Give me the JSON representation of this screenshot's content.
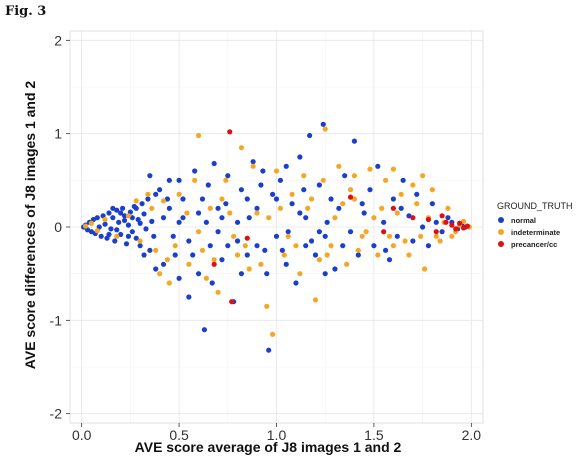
{
  "figure": {
    "label": "Fig. 3"
  },
  "chart_data": {
    "type": "scatter",
    "xlabel": "AVE score average of J8 images 1 and 2",
    "ylabel": "AVE score differences of J8 images 1 and 2",
    "xlim": [
      -0.06,
      2.06
    ],
    "ylim": [
      -2.1,
      2.1
    ],
    "x_ticks": [
      "0.0",
      "0.5",
      "1.0",
      "1.5",
      "2.0"
    ],
    "y_ticks": [
      "2",
      "1",
      "0",
      "-1",
      "-2"
    ],
    "grid": true,
    "legend_position": "right",
    "legend_title": "GROUND_TRUTH",
    "series": [
      {
        "name": "normal",
        "color": "#1a3fcc",
        "points": [
          [
            0.01,
            0
          ],
          [
            0.02,
            0.02
          ],
          [
            0.03,
            -0.03
          ],
          [
            0.04,
            0.05
          ],
          [
            0.05,
            -0.05
          ],
          [
            0.06,
            0.08
          ],
          [
            0.07,
            -0.07
          ],
          [
            0.08,
            0.1
          ],
          [
            0.09,
            0
          ],
          [
            0.1,
            -0.1
          ],
          [
            0.11,
            0.12
          ],
          [
            0.12,
            0.03
          ],
          [
            0.13,
            -0.12
          ],
          [
            0.14,
            0.15
          ],
          [
            0.15,
            -0.02
          ],
          [
            0.16,
            0.1
          ],
          [
            0.17,
            -0.15
          ],
          [
            0.18,
            0.18
          ],
          [
            0.19,
            0.05
          ],
          [
            0.2,
            -0.08
          ],
          [
            0.21,
            0.2
          ],
          [
            0.22,
            0.12
          ],
          [
            0.23,
            -0.18
          ],
          [
            0.24,
            0.02
          ],
          [
            0.25,
            0.16
          ],
          [
            0.26,
            -0.05
          ],
          [
            0.27,
            0.22
          ],
          [
            0.28,
            -0.12
          ],
          [
            0.29,
            0.08
          ],
          [
            0.3,
            -0.2
          ],
          [
            0.31,
            0.25
          ],
          [
            0.32,
            0.14
          ],
          [
            0.33,
            -0.02
          ],
          [
            0.34,
            0.3
          ],
          [
            0.35,
            -0.25
          ],
          [
            0.36,
            0.06
          ],
          [
            0.37,
            -0.1
          ],
          [
            0.38,
            0.35
          ],
          [
            0.22,
            0.07
          ],
          [
            0.24,
            -0.1
          ],
          [
            0.2,
            0.15
          ],
          [
            0.18,
            -0.03
          ],
          [
            0.16,
            0.2
          ],
          [
            0.14,
            -0.08
          ],
          [
            0.26,
            0.1
          ],
          [
            0.28,
            0.2
          ],
          [
            0.3,
            0.04
          ],
          [
            0.32,
            -0.3
          ],
          [
            0.4,
            0.4
          ],
          [
            0.42,
            -0.4
          ],
          [
            0.45,
            0.2
          ],
          [
            0.48,
            -0.3
          ],
          [
            0.5,
            0.5
          ],
          [
            0.5,
            -0.55
          ],
          [
            0.52,
            0.1
          ],
          [
            0.55,
            -0.15
          ],
          [
            0.58,
            0.6
          ],
          [
            0.6,
            -0.5
          ],
          [
            0.62,
            0.3
          ],
          [
            0.63,
            -1.1
          ],
          [
            0.65,
            0.45
          ],
          [
            0.67,
            -0.6
          ],
          [
            0.7,
            0.2
          ],
          [
            0.72,
            -0.35
          ],
          [
            0.75,
            0.55
          ],
          [
            0.78,
            -0.8
          ],
          [
            0.8,
            0.05
          ],
          [
            0.82,
            0.4
          ],
          [
            0.85,
            -0.3
          ],
          [
            0.88,
            0.7
          ],
          [
            0.9,
            -0.2
          ],
          [
            0.93,
            0.6
          ],
          [
            0.95,
            -0.5
          ],
          [
            0.96,
            -1.32
          ],
          [
            0.98,
            0.35
          ],
          [
            1.0,
            -0.1
          ],
          [
            1.02,
            0.5
          ],
          [
            1.05,
            -0.4
          ],
          [
            1.08,
            0.25
          ],
          [
            1.1,
            -0.6
          ],
          [
            1.12,
            0.75
          ],
          [
            1.15,
            0.1
          ],
          [
            1.17,
            0.98
          ],
          [
            1.2,
            -0.3
          ],
          [
            1.22,
            0.45
          ],
          [
            1.24,
            1.1
          ],
          [
            1.25,
            -0.1
          ],
          [
            1.28,
            0.3
          ],
          [
            1.3,
            -0.45
          ],
          [
            1.32,
            0.2
          ],
          [
            1.35,
            0.55
          ],
          [
            1.38,
            -0.05
          ],
          [
            1.4,
            0.92
          ],
          [
            1.42,
            -0.3
          ],
          [
            1.45,
            0.15
          ],
          [
            1.48,
            0.4
          ],
          [
            1.5,
            -0.2
          ],
          [
            1.52,
            0.65
          ],
          [
            1.55,
            0.05
          ],
          [
            1.58,
            -0.35
          ],
          [
            1.6,
            0.3
          ],
          [
            1.62,
            -0.1
          ],
          [
            1.65,
            0.5
          ],
          [
            1.68,
            0.12
          ],
          [
            1.7,
            -0.15
          ],
          [
            1.72,
            0.35
          ],
          [
            1.75,
            0.0
          ],
          [
            1.78,
            -0.2
          ],
          [
            1.8,
            0.25
          ],
          [
            1.82,
            0.05
          ],
          [
            1.85,
            -0.05
          ],
          [
            1.88,
            0.1
          ],
          [
            1.9,
            0.05
          ],
          [
            1.93,
            -0.02
          ],
          [
            1.95,
            0.03
          ],
          [
            1.97,
            0.0
          ],
          [
            0.35,
            0.55
          ],
          [
            0.45,
            0.5
          ],
          [
            0.55,
            -0.75
          ],
          [
            0.68,
            0.68
          ],
          [
            0.75,
            -0.2
          ],
          [
            0.85,
            0.3
          ],
          [
            1.05,
            0.65
          ],
          [
            1.15,
            -0.2
          ],
          [
            1.25,
            -0.5
          ],
          [
            0.42,
            0.1
          ],
          [
            0.47,
            -0.1
          ],
          [
            0.52,
            0.3
          ],
          [
            0.57,
            -0.3
          ],
          [
            0.6,
            0.15
          ],
          [
            0.64,
            0.05
          ],
          [
            0.7,
            -0.05
          ],
          [
            0.74,
            0.25
          ],
          [
            0.8,
            -0.15
          ],
          [
            0.86,
            0.1
          ],
          [
            0.9,
            0.2
          ],
          [
            0.94,
            -0.25
          ],
          [
            1.0,
            0.3
          ],
          [
            1.06,
            -0.05
          ],
          [
            1.12,
            0.15
          ],
          [
            1.18,
            -0.15
          ],
          [
            1.26,
            0.05
          ],
          [
            1.34,
            -0.2
          ],
          [
            1.44,
            0.25
          ],
          [
            1.56,
            -0.25
          ],
          [
            1.64,
            0.2
          ],
          [
            0.38,
            -0.45
          ],
          [
            0.44,
            0.3
          ],
          [
            0.5,
            0.05
          ],
          [
            0.66,
            -0.2
          ],
          [
            0.72,
            0.1
          ],
          [
            0.82,
            -0.5
          ],
          [
            0.92,
            0.45
          ],
          [
            1.03,
            -0.25
          ],
          [
            1.14,
            0.4
          ],
          [
            1.22,
            -0.05
          ]
        ]
      },
      {
        "name": "indeterminate",
        "color": "#f5a623",
        "points": [
          [
            0.02,
            0.01
          ],
          [
            0.05,
            0.04
          ],
          [
            0.08,
            -0.04
          ],
          [
            0.12,
            0.08
          ],
          [
            0.18,
            -0.1
          ],
          [
            0.24,
            0.12
          ],
          [
            0.3,
            -0.15
          ],
          [
            0.36,
            0.2
          ],
          [
            0.4,
            -0.5
          ],
          [
            0.45,
            -0.6
          ],
          [
            0.5,
            0.35
          ],
          [
            0.55,
            -0.4
          ],
          [
            0.6,
            0.98
          ],
          [
            0.62,
            -0.25
          ],
          [
            0.66,
            0.2
          ],
          [
            0.7,
            -0.7
          ],
          [
            0.74,
            0.5
          ],
          [
            0.78,
            -0.1
          ],
          [
            0.82,
            0.85
          ],
          [
            0.86,
            -0.45
          ],
          [
            0.9,
            0.15
          ],
          [
            0.95,
            -0.85
          ],
          [
            0.98,
            -1.15
          ],
          [
            1.0,
            0.6
          ],
          [
            1.04,
            -0.3
          ],
          [
            1.08,
            0.35
          ],
          [
            1.12,
            -0.5
          ],
          [
            1.16,
            0.2
          ],
          [
            1.2,
            -0.78
          ],
          [
            1.25,
            1.05
          ],
          [
            1.28,
            -0.2
          ],
          [
            1.32,
            0.65
          ],
          [
            1.36,
            -0.4
          ],
          [
            1.4,
            0.3
          ],
          [
            1.44,
            -0.1
          ],
          [
            1.48,
            0.62
          ],
          [
            1.52,
            -0.3
          ],
          [
            1.56,
            0.5
          ],
          [
            1.6,
            -0.2
          ],
          [
            1.64,
            0.35
          ],
          [
            1.68,
            -0.3
          ],
          [
            1.72,
            0.25
          ],
          [
            1.76,
            -0.45
          ],
          [
            1.8,
            0.4
          ],
          [
            1.84,
            -0.15
          ],
          [
            1.88,
            0.2
          ],
          [
            1.92,
            -0.05
          ],
          [
            1.96,
            0.06
          ],
          [
            1.99,
            0
          ],
          [
            0.42,
            0.28
          ],
          [
            0.48,
            -0.2
          ],
          [
            0.58,
            0.5
          ],
          [
            0.64,
            -0.55
          ],
          [
            0.72,
            0.3
          ],
          [
            0.8,
            -0.3
          ],
          [
            0.88,
            0.65
          ],
          [
            0.96,
            0.1
          ],
          [
            1.06,
            -0.1
          ],
          [
            1.14,
            0.55
          ],
          [
            1.22,
            -0.35
          ],
          [
            1.3,
            0.1
          ],
          [
            1.38,
            0.4
          ],
          [
            1.46,
            -0.05
          ],
          [
            1.54,
            0.2
          ],
          [
            1.62,
            0.15
          ],
          [
            1.7,
            0.45
          ],
          [
            1.78,
            0.1
          ],
          [
            1.86,
            0.05
          ],
          [
            1.94,
            0.02
          ],
          [
            0.34,
            0.35
          ],
          [
            0.44,
            -0.35
          ],
          [
            0.54,
            0.15
          ],
          [
            0.68,
            -0.35
          ],
          [
            0.76,
            0.15
          ],
          [
            0.84,
            -0.2
          ],
          [
            0.92,
            -0.4
          ],
          [
            1.02,
            0.2
          ],
          [
            1.1,
            -0.2
          ],
          [
            1.18,
            0.3
          ],
          [
            1.26,
            -0.3
          ],
          [
            1.34,
            0.25
          ],
          [
            1.42,
            -0.25
          ],
          [
            1.5,
            0.1
          ],
          [
            1.58,
            -0.1
          ],
          [
            1.66,
            -0.15
          ],
          [
            1.74,
            -0.1
          ],
          [
            1.82,
            -0.1
          ],
          [
            1.9,
            -0.1
          ],
          [
            0.28,
            0.28
          ],
          [
            0.38,
            -0.25
          ],
          [
            0.6,
            -0.05
          ],
          [
            1.24,
            0.5
          ],
          [
            1.4,
            0.55
          ],
          [
            1.6,
            0.62
          ],
          [
            1.75,
            0.55
          ]
        ]
      },
      {
        "name": "precancer/cc",
        "color": "#e01010",
        "points": [
          [
            0.76,
            1.02
          ],
          [
            0.85,
            -0.12
          ],
          [
            0.68,
            -0.4
          ],
          [
            0.77,
            -0.8
          ],
          [
            1.38,
            0.32
          ],
          [
            1.6,
            0.2
          ],
          [
            1.78,
            0.08
          ],
          [
            1.82,
            -0.05
          ],
          [
            1.87,
            0.05
          ],
          [
            1.9,
            0.02
          ],
          [
            1.92,
            -0.02
          ],
          [
            1.94,
            0.04
          ],
          [
            1.96,
            -0.01
          ],
          [
            1.98,
            0.01
          ],
          [
            1.85,
            0.12
          ],
          [
            1.7,
            0.1
          ],
          [
            1.55,
            -0.05
          ]
        ]
      }
    ]
  }
}
